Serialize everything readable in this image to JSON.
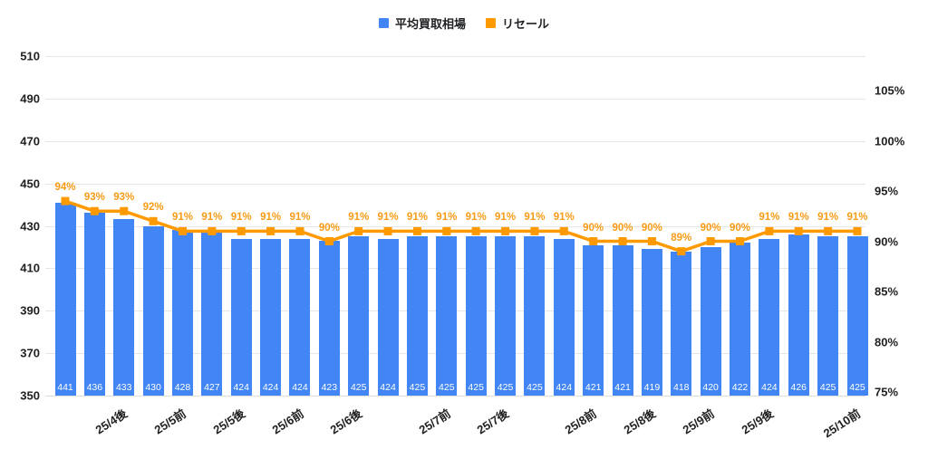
{
  "chart_data": {
    "type": "combo_bar_line",
    "title": "",
    "legend_position": "top-center",
    "grid": true,
    "background": "#ffffff",
    "legend": [
      {
        "label": "平均買取相場",
        "color": "#4285f4",
        "marker": "square",
        "series_type": "bar"
      },
      {
        "label": "リセール",
        "color": "#ff9900",
        "marker": "square",
        "series_type": "line"
      }
    ],
    "y_axis_left": {
      "min": 350,
      "max": 510,
      "step": 20,
      "ticks": [
        350,
        370,
        390,
        410,
        430,
        450,
        470,
        490,
        510
      ]
    },
    "y_axis_right": {
      "min_percent": 75,
      "max_percent": 105,
      "step_percent": 5,
      "ticks": [
        "75%",
        "80%",
        "85%",
        "90%",
        "95%",
        "100%",
        "105%"
      ]
    },
    "x_axis": {
      "tick_labels": [
        {
          "label": "25/4後",
          "bar_index": 2
        },
        {
          "label": "25/5前",
          "bar_index": 4
        },
        {
          "label": "25/5後",
          "bar_index": 6
        },
        {
          "label": "25/6前",
          "bar_index": 8
        },
        {
          "label": "25/6後",
          "bar_index": 10
        },
        {
          "label": "25/7前",
          "bar_index": 13
        },
        {
          "label": "25/7後",
          "bar_index": 15
        },
        {
          "label": "25/8前",
          "bar_index": 18
        },
        {
          "label": "25/8後",
          "bar_index": 20
        },
        {
          "label": "25/9前",
          "bar_index": 22
        },
        {
          "label": "25/9後",
          "bar_index": 24
        },
        {
          "label": "25/10前",
          "bar_index": 27
        }
      ]
    },
    "series": [
      {
        "name": "平均買取相場",
        "type": "bar",
        "axis": "left",
        "color": "#4285f4",
        "value_label_color": "#ffffff",
        "values": [
          441,
          436,
          433,
          430,
          428,
          427,
          424,
          424,
          424,
          423,
          425,
          424,
          425,
          425,
          425,
          425,
          425,
          424,
          421,
          421,
          419,
          418,
          420,
          422,
          424,
          426,
          425,
          425
        ]
      },
      {
        "name": "リセール",
        "type": "line",
        "axis": "right",
        "color": "#ff9900",
        "marker": "square",
        "annotation_color": "#f79b17",
        "annotation_suffix": "%",
        "values_percent": [
          94,
          93,
          93,
          92,
          91,
          91,
          91,
          91,
          91,
          90,
          91,
          91,
          91,
          91,
          91,
          91,
          91,
          91,
          90,
          90,
          90,
          89,
          90,
          90,
          91,
          91,
          91,
          91
        ]
      }
    ],
    "colors": {
      "gridline": "#e6e6e6",
      "axis_text": "#212121"
    }
  }
}
